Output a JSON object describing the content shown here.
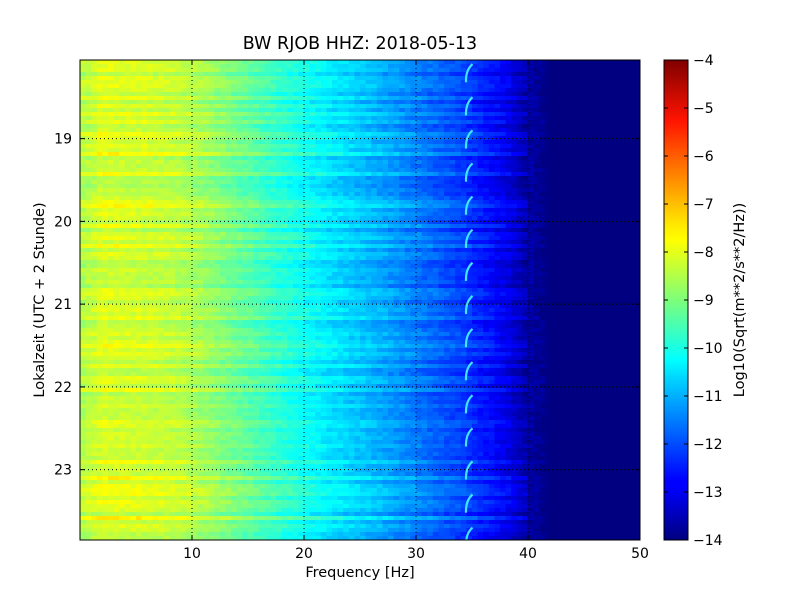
{
  "chart_data": {
    "type": "heatmap",
    "title": "BW RJOB HHZ: 2018-05-13",
    "xlabel": "Frequency [Hz]",
    "ylabel": "Lokalzeit (UTC + 2 Stunde)",
    "xlim": [
      0,
      50
    ],
    "ylim": [
      18.05,
      23.85
    ],
    "y_inverted": true,
    "xticks": [
      10,
      20,
      30,
      40,
      50
    ],
    "yticks": [
      19,
      20,
      21,
      22,
      23
    ],
    "grid": true,
    "colormap": "jet",
    "colorbar": {
      "label": "Log10(Sqrt(m**2/s**2/Hz))",
      "range": [
        -14,
        -4
      ],
      "ticks": [
        -4,
        -5,
        -6,
        -7,
        -8,
        -9,
        -10,
        -11,
        -12,
        -13,
        -14
      ]
    },
    "spectrum_profile": {
      "frequency_hz": [
        0,
        2,
        5,
        8,
        10,
        12,
        15,
        18,
        20,
        22,
        25,
        28,
        30,
        32,
        34,
        36,
        38,
        40,
        42,
        45,
        50
      ],
      "log10_psd": [
        -8.5,
        -8.1,
        -8.2,
        -8.3,
        -8.5,
        -8.8,
        -9.3,
        -9.8,
        -10.1,
        -10.4,
        -10.8,
        -11.2,
        -11.5,
        -11.8,
        -12.1,
        -12.5,
        -12.9,
        -13.6,
        -14,
        -14,
        -14
      ]
    },
    "annotations": [
      {
        "label": "recurring narrow signal",
        "frequency_hz": 34.6,
        "interval_hours": 0.4
      }
    ]
  }
}
